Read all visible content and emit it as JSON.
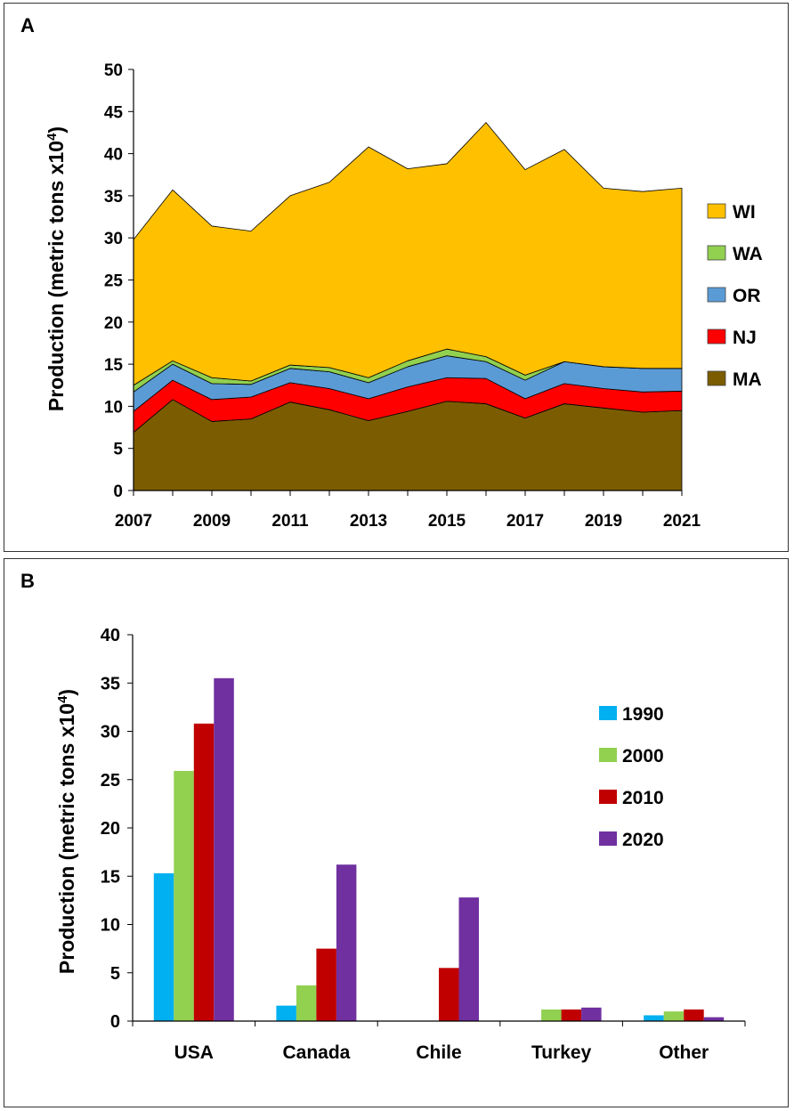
{
  "chart_data": [
    {
      "type": "area",
      "panel_label": "A",
      "title": "",
      "xlabel": "",
      "ylabel": "Production (metric tons x10",
      "ylabel_sup": "4",
      "ylabel_close": ")",
      "x": [
        2007,
        2008,
        2009,
        2010,
        2011,
        2012,
        2013,
        2014,
        2015,
        2016,
        2017,
        2018,
        2019,
        2020,
        2021
      ],
      "x_tick_labels": [
        "2007",
        "2009",
        "2011",
        "2013",
        "2015",
        "2017",
        "2019",
        "2021"
      ],
      "x_tick_values": [
        2007,
        2009,
        2011,
        2013,
        2015,
        2017,
        2019,
        2021
      ],
      "ylim": [
        0,
        50
      ],
      "y_ticks": [
        0,
        5,
        10,
        15,
        20,
        25,
        30,
        35,
        40,
        45,
        50
      ],
      "stacked": true,
      "series": [
        {
          "name": "MA",
          "color": "#7B5C00",
          "values": [
            6.9,
            10.8,
            8.2,
            8.5,
            10.5,
            9.6,
            8.3,
            9.4,
            10.6,
            10.3,
            8.6,
            10.3,
            9.8,
            9.3,
            9.5
          ]
        },
        {
          "name": "NJ",
          "color": "#FF0000",
          "values": [
            2.5,
            2.3,
            2.6,
            2.6,
            2.3,
            2.5,
            2.6,
            2.9,
            2.8,
            3.0,
            2.3,
            2.4,
            2.3,
            2.4,
            2.3
          ]
        },
        {
          "name": "OR",
          "color": "#5B9BD5",
          "values": [
            2.3,
            1.9,
            1.9,
            1.5,
            1.7,
            2.0,
            1.9,
            2.4,
            2.6,
            2.0,
            2.2,
            2.6,
            2.6,
            2.8,
            2.7
          ]
        },
        {
          "name": "WA",
          "color": "#92D050",
          "values": [
            0.8,
            0.4,
            0.7,
            0.4,
            0.4,
            0.5,
            0.6,
            0.7,
            0.8,
            0.6,
            0.6,
            0.0,
            0.0,
            0.0,
            0.0
          ]
        },
        {
          "name": "WI",
          "color": "#FFC000",
          "values": [
            17.3,
            20.3,
            18.0,
            17.8,
            20.1,
            22.0,
            27.4,
            22.8,
            22.0,
            27.8,
            24.4,
            25.2,
            21.2,
            21.0,
            21.4
          ]
        }
      ],
      "legend_order": [
        "WI",
        "WA",
        "OR",
        "NJ",
        "MA"
      ],
      "legend_position": "right"
    },
    {
      "type": "bar",
      "panel_label": "B",
      "title": "",
      "xlabel": "",
      "ylabel": "Production (metric tons x10",
      "ylabel_sup": "4",
      "ylabel_close": ")",
      "categories": [
        "USA",
        "Canada",
        "Chile",
        "Turkey",
        "Other"
      ],
      "ylim": [
        0,
        40
      ],
      "y_ticks": [
        0,
        5,
        10,
        15,
        20,
        25,
        30,
        35,
        40
      ],
      "series": [
        {
          "name": "1990",
          "color": "#00B0F0",
          "values": [
            15.3,
            1.6,
            0,
            0,
            0.6
          ]
        },
        {
          "name": "2000",
          "color": "#92D050",
          "values": [
            25.9,
            3.7,
            0,
            1.2,
            1.0
          ]
        },
        {
          "name": "2010",
          "color": "#C00000",
          "values": [
            30.8,
            7.5,
            5.5,
            1.2,
            1.2
          ]
        },
        {
          "name": "2020",
          "color": "#7030A0",
          "values": [
            35.5,
            16.2,
            12.8,
            1.4,
            0.4
          ]
        }
      ],
      "legend_position": "right"
    }
  ]
}
